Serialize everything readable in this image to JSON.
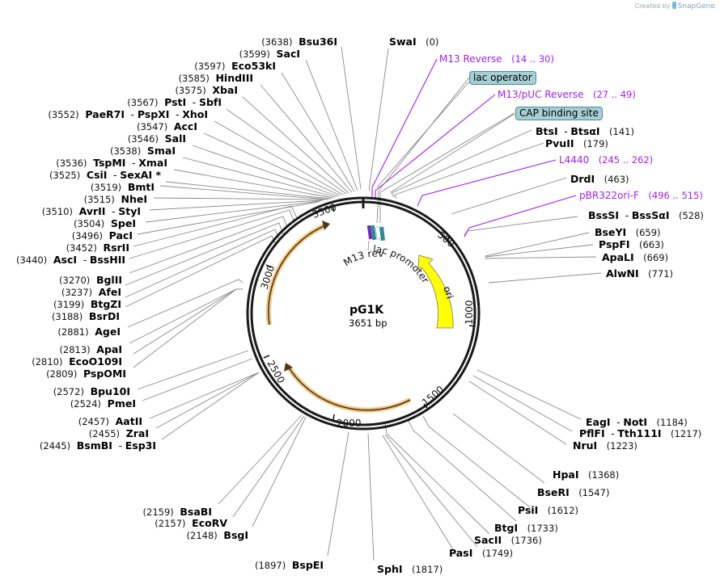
{
  "brand": {
    "created_by": "Created by",
    "name": "SnapGene"
  },
  "plasmid": {
    "name": "pG1K",
    "length_label": "3651 bp",
    "length": 3651
  },
  "ticks": [
    "500",
    "1000",
    "1500",
    "2000",
    "2500",
    "3000",
    "3500"
  ],
  "features": {
    "ori_label": "ori",
    "lac_promoter_label": "lac promoter",
    "m13_rev_label": "M13 rev",
    "lac_operator": "lac operator",
    "cap_binding_site": "CAP binding site"
  },
  "primers": [
    {
      "name": "M13 Reverse",
      "range": "(14 .. 30)"
    },
    {
      "name": "M13/pUC Reverse",
      "range": "(27 .. 49)"
    },
    {
      "name": "L4440",
      "range": "(245 .. 262)"
    },
    {
      "name": "pBR322ori-F",
      "range": "(496 .. 515)"
    }
  ],
  "sites_left": [
    {
      "pos": "(3638)",
      "name": "Bsu36I"
    },
    {
      "pos": "(3599)",
      "name": "SacI"
    },
    {
      "pos": "(3597)",
      "name": "Eco53kI"
    },
    {
      "pos": "(3585)",
      "name": "HindIII"
    },
    {
      "pos": "(3575)",
      "name": "XbaI"
    },
    {
      "pos": "(3567)",
      "name": "PstI",
      "name2": "SbfI"
    },
    {
      "pos": "(3552)",
      "name": "PaeR7I",
      "name2": "PspXI",
      "name3": "XhoI"
    },
    {
      "pos": "(3547)",
      "name": "AccI"
    },
    {
      "pos": "(3546)",
      "name": "SalI"
    },
    {
      "pos": "(3538)",
      "name": "SmaI"
    },
    {
      "pos": "(3536)",
      "name": "TspMI",
      "name2": "XmaI"
    },
    {
      "pos": "(3525)",
      "name": "CsiI",
      "name2": "SexAI *"
    },
    {
      "pos": "(3519)",
      "name": "BmtI"
    },
    {
      "pos": "(3515)",
      "name": "NheI"
    },
    {
      "pos": "(3510)",
      "name": "AvrII",
      "name2": "StyI"
    },
    {
      "pos": "(3504)",
      "name": "SpeI"
    },
    {
      "pos": "(3496)",
      "name": "PacI"
    },
    {
      "pos": "(3452)",
      "name": "RsrII"
    },
    {
      "pos": "(3440)",
      "name": "AscI",
      "name2": "BssHII"
    },
    {
      "pos": "(3270)",
      "name": "BglII"
    },
    {
      "pos": "(3237)",
      "name": "AfeI"
    },
    {
      "pos": "(3199)",
      "name": "BtgZI"
    },
    {
      "pos": "(3188)",
      "name": "BsrDI"
    },
    {
      "pos": "(2881)",
      "name": "AgeI"
    },
    {
      "pos": "(2813)",
      "name": "ApaI"
    },
    {
      "pos": "(2810)",
      "name": "EcoO109I"
    },
    {
      "pos": "(2809)",
      "name": "PspOMI"
    },
    {
      "pos": "(2572)",
      "name": "Bpu10I"
    },
    {
      "pos": "(2524)",
      "name": "PmeI"
    },
    {
      "pos": "(2457)",
      "name": "AatII"
    },
    {
      "pos": "(2455)",
      "name": "ZraI"
    },
    {
      "pos": "(2445)",
      "name": "BsmBI",
      "name2": "Esp3I"
    },
    {
      "pos": "(2159)",
      "name": "BsaBI"
    },
    {
      "pos": "(2157)",
      "name": "EcoRV"
    },
    {
      "pos": "(2148)",
      "name": "BsgI"
    },
    {
      "pos": "(1897)",
      "name": "BspEI"
    }
  ],
  "sites_right": [
    {
      "pos": "(0)",
      "name": "SwaI"
    },
    {
      "pos": "(141)",
      "name": "BtsI",
      "name2": "BtsαI"
    },
    {
      "pos": "(179)",
      "name": "PvuII"
    },
    {
      "pos": "(463)",
      "name": "DrdI"
    },
    {
      "pos": "(528)",
      "name": "BssSI",
      "name2": "BssSαI"
    },
    {
      "pos": "(659)",
      "name": "BseYI"
    },
    {
      "pos": "(663)",
      "name": "PspFI"
    },
    {
      "pos": "(669)",
      "name": "ApaLI"
    },
    {
      "pos": "(771)",
      "name": "AlwNI"
    },
    {
      "pos": "(1184)",
      "name": "EagI",
      "name2": "NotI"
    },
    {
      "pos": "(1217)",
      "name": "PflFI",
      "name2": "Tth111I"
    },
    {
      "pos": "(1223)",
      "name": "NruI"
    },
    {
      "pos": "(1368)",
      "name": "HpaI"
    },
    {
      "pos": "(1547)",
      "name": "BseRI"
    },
    {
      "pos": "(1612)",
      "name": "PsiI"
    },
    {
      "pos": "(1733)",
      "name": "BtgI"
    },
    {
      "pos": "(1736)",
      "name": "SacII"
    },
    {
      "pos": "(1749)",
      "name": "PasI"
    },
    {
      "pos": "(1817)",
      "name": "SphI"
    }
  ],
  "colors": {
    "primer": "#a020f0",
    "ori": "#ffff00",
    "orf_glow": "#f5c77e",
    "feature_box": "#a6cfd5",
    "backbone": "#1a1a1a"
  }
}
